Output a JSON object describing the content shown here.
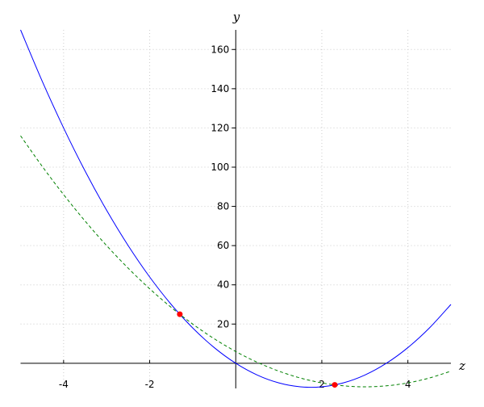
{
  "chart_data": {
    "type": "line",
    "xlabel": "z",
    "ylabel": "y",
    "xlim": [
      -5,
      5
    ],
    "ylim": [
      -12,
      170
    ],
    "xticks": [
      -4,
      -2,
      2,
      4
    ],
    "yticks": [
      20,
      40,
      60,
      80,
      100,
      120,
      140,
      160
    ],
    "grid": true,
    "series": [
      {
        "color": "#0000ff",
        "linestyle": "solid",
        "x": [
          -5,
          -4.5,
          -4,
          -3.5,
          -3,
          -2.5,
          -2,
          -1.5,
          -1,
          -0.5,
          0,
          0.5,
          1,
          1.5,
          2,
          2.5,
          3,
          3.5,
          4,
          4.5,
          5
        ],
        "values": [
          170,
          144,
          120,
          98,
          78,
          60,
          44,
          30,
          18,
          8,
          0,
          -6,
          -10,
          -12,
          -12,
          -10,
          -6,
          0,
          8,
          18,
          30
        ]
      },
      {
        "color": "#008000",
        "linestyle": "dashed",
        "x": [
          -5,
          -4.5,
          -4,
          -3.5,
          -3,
          -2.5,
          -2,
          -1.5,
          -1,
          -0.5,
          0,
          0.5,
          1,
          1.5,
          2,
          2.5,
          3,
          3.5,
          4,
          4.5,
          5
        ],
        "values": [
          116,
          100.5,
          86,
          72.5,
          60,
          48.5,
          38,
          28.5,
          20,
          12.5,
          6,
          0.5,
          -4,
          -7.5,
          -10,
          -11.5,
          -12,
          -11.5,
          -10,
          -7.5,
          -4
        ]
      },
      {
        "color": "#ff0000",
        "linestyle": "points",
        "x": [
          -1.3,
          2.3
        ],
        "values": [
          25,
          -11
        ]
      }
    ]
  }
}
